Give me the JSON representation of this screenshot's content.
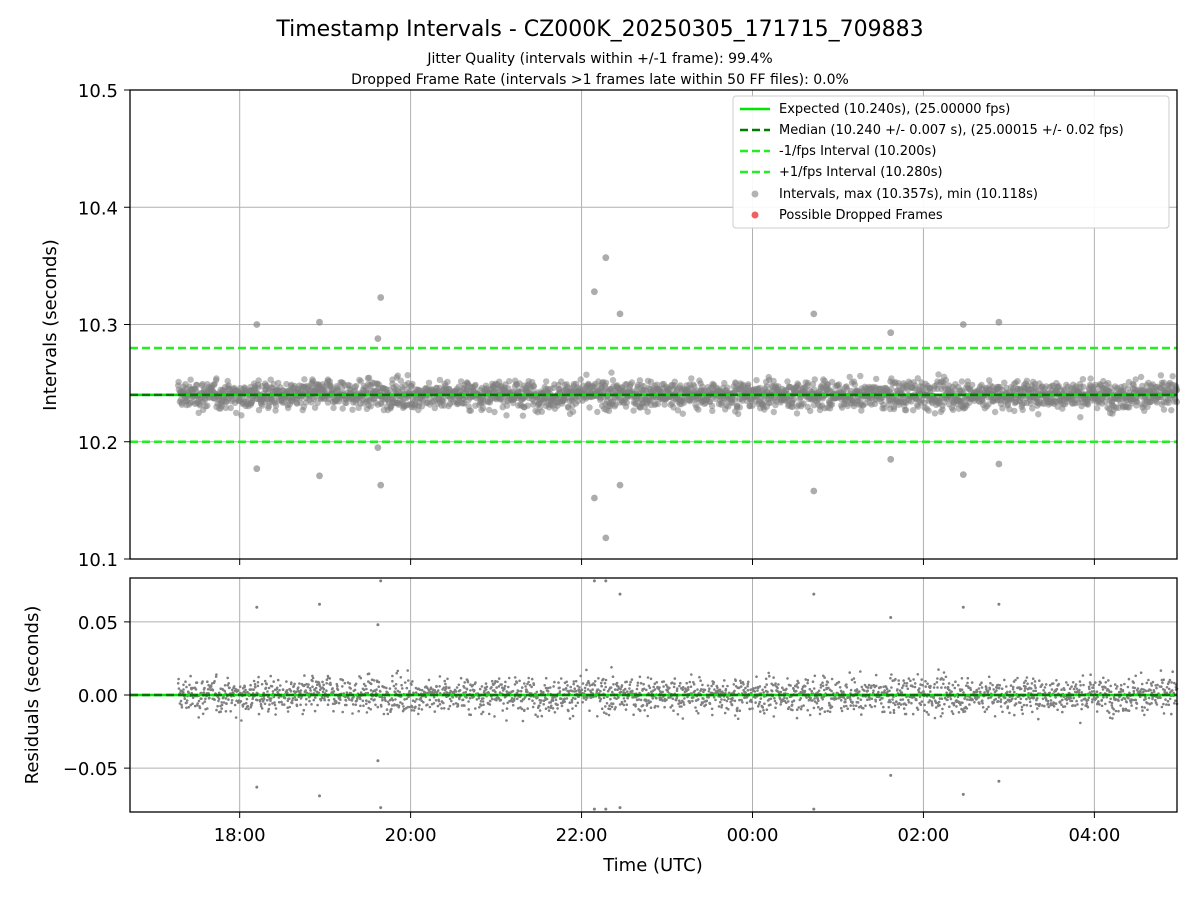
{
  "chart_data": {
    "type": "scatter",
    "title": "Timestamp Intervals - CZ000K_20250305_171715_709883",
    "subtitle_lines": [
      "Jitter Quality (intervals within +/-1 frame): 99.4%",
      "Dropped Frame Rate (intervals >1 frames late within 50 FF files): 0.0%"
    ],
    "colors": {
      "expected": "#00e600",
      "median": "#007a00",
      "bounds": "#22ee22",
      "points": "#808080",
      "dropped": "#f06060",
      "grid": "#b0b0b0"
    },
    "top_panel": {
      "ylabel": "Intervals (seconds)",
      "ylim": [
        10.1,
        10.5
      ],
      "yticks": [
        "10.1",
        "10.2",
        "10.3",
        "10.4",
        "10.5"
      ],
      "expected": 10.24,
      "median": 10.24,
      "lower_bound": 10.2,
      "upper_bound": 10.28,
      "legend_position": "top-right",
      "legend": [
        "Expected (10.240s), (25.00000 fps)",
        "Median (10.240 +/- 0.007 s), (25.00015 +/- 0.02 fps)",
        "-1/fps Interval (10.200s)",
        "+1/fps Interval (10.280s)",
        "Intervals, max (10.357s), min (10.118s)",
        "Possible Dropped Frames"
      ],
      "outliers": [
        {
          "time": "18:12",
          "value": 10.3
        },
        {
          "time": "18:12",
          "value": 10.177
        },
        {
          "time": "18:56",
          "value": 10.302
        },
        {
          "time": "18:56",
          "value": 10.171
        },
        {
          "time": "19:39",
          "value": 10.323
        },
        {
          "time": "19:39",
          "value": 10.163
        },
        {
          "time": "19:37",
          "value": 10.288
        },
        {
          "time": "19:37",
          "value": 10.195
        },
        {
          "time": "22:09",
          "value": 10.328
        },
        {
          "time": "22:09",
          "value": 10.152
        },
        {
          "time": "22:17",
          "value": 10.357
        },
        {
          "time": "22:17",
          "value": 10.118
        },
        {
          "time": "22:27",
          "value": 10.309
        },
        {
          "time": "22:27",
          "value": 10.163
        },
        {
          "time": "00:43",
          "value": 10.309
        },
        {
          "time": "00:43",
          "value": 10.158
        },
        {
          "time": "01:37",
          "value": 10.293
        },
        {
          "time": "01:37",
          "value": 10.185
        },
        {
          "time": "02:28",
          "value": 10.3
        },
        {
          "time": "02:28",
          "value": 10.172
        },
        {
          "time": "02:53",
          "value": 10.302
        },
        {
          "time": "02:53",
          "value": 10.181
        }
      ]
    },
    "bottom_panel": {
      "ylabel": "Residuals (seconds)",
      "ylim": [
        -0.08,
        0.08
      ],
      "yticks": [
        "−0.05",
        "0.00",
        "0.05"
      ],
      "ytick_values": [
        -0.05,
        0.0,
        0.05
      ]
    },
    "x_axis": {
      "label": "Time (UTC)",
      "ticks": [
        "18:00",
        "20:00",
        "22:00",
        "00:00",
        "02:00",
        "04:00"
      ],
      "range_start": "2025-03-05 16:43",
      "range_end": "2025-03-06 04:58",
      "data_start": "2025-03-05 17:17",
      "data_end": "2025-03-06 04:58"
    }
  }
}
